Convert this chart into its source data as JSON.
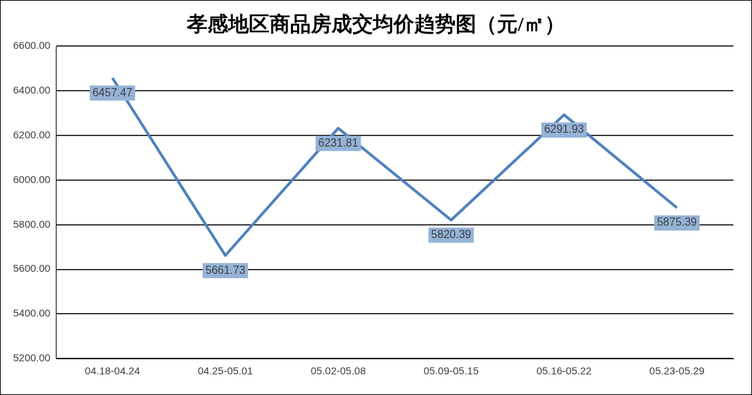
{
  "chart_data": {
    "type": "line",
    "title": "孝感地区商品房成交均价趋势图（元/㎡）",
    "categories": [
      "04.18-04.24",
      "04.25-05.01",
      "05.02-05.08",
      "05.09-05.15",
      "05.16-05.22",
      "05.23-05.29"
    ],
    "series": [
      {
        "color": "#4f81bd",
        "values": [
          6457.47,
          5661.73,
          6231.81,
          5820.39,
          6291.93,
          5875.39
        ]
      }
    ],
    "ylim": [
      5200,
      6600
    ],
    "yticks": [
      {
        "value": 5200,
        "label": "5200.00"
      },
      {
        "value": 5400,
        "label": "5400.00"
      },
      {
        "value": 5600,
        "label": "5600.00"
      },
      {
        "value": 5800,
        "label": "5800.00"
      },
      {
        "value": 6000,
        "label": "6000.00"
      },
      {
        "value": 6200,
        "label": "6200.00"
      },
      {
        "value": 6400,
        "label": "6400.00"
      },
      {
        "value": 6600,
        "label": "6600.00"
      }
    ],
    "grid": "y",
    "legend": false,
    "marker": "none",
    "line_style": "solid",
    "data_labels": true
  }
}
